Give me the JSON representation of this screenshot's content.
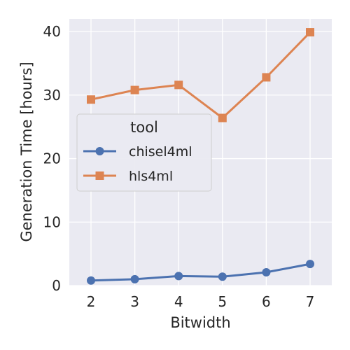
{
  "chart_data": {
    "type": "line",
    "xlabel": "Bitwidth",
    "ylabel": "Generation Time [hours]",
    "x": [
      2,
      3,
      4,
      5,
      6,
      7
    ],
    "ylim": [
      0,
      42
    ],
    "yticks": [
      0,
      10,
      20,
      30,
      40
    ],
    "grid": true,
    "legend": {
      "title": "tool",
      "placement": "center-left"
    },
    "series": [
      {
        "name": "chisel4ml",
        "values": [
          0.8,
          1.0,
          1.5,
          1.4,
          2.1,
          3.4
        ],
        "color": "#4c72b0",
        "marker": "circle"
      },
      {
        "name": "hls4ml",
        "values": [
          29.3,
          30.8,
          31.6,
          26.4,
          32.8,
          39.9
        ],
        "color": "#dd8452",
        "marker": "square"
      }
    ],
    "background_color": "#eaeaf2"
  }
}
